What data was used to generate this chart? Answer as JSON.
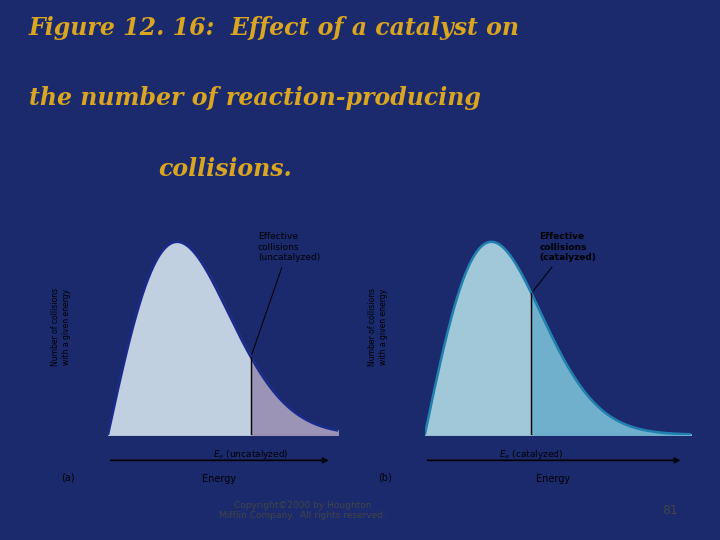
{
  "title": "Figure 12. 16:  Effect of a catalyst on\nthe number of reaction-producing\ncollisions.",
  "title_color": "#DAA520",
  "bg_color": "#1a2a6c",
  "panel_bg": "#f5f5f5",
  "plot_bg_color": "#b8ccd8",
  "curve_color_a": "#1a2a8c",
  "curve_color_b": "#2080b0",
  "fill_main_a": "#c0d0e0",
  "fill_shade_a": "#9080a8",
  "fill_main_b": "#a0c8d8",
  "fill_shade_b": "#60a8c8",
  "ylabel": "Number of collisions\nwith a given energy",
  "xlabel": "Energy",
  "label_a": "Effective\ncollisions\n(uncatalyzed)",
  "label_b": "Effective\ncollisions\n(catalyzed)",
  "ea_label_a": "$E_a$ (uncatalyzed)",
  "ea_label_b": "$E_a$ (catalyzed)",
  "panel_label_a": "(a)",
  "panel_label_b": "(b)",
  "copyright": "Copyright©2000 by Houghton\nMifflin Company.  All rights reserved.",
  "page_num": "81",
  "peak_a": 3.0,
  "ea_a": 6.2,
  "peak_b": 2.5,
  "ea_b": 4.0
}
